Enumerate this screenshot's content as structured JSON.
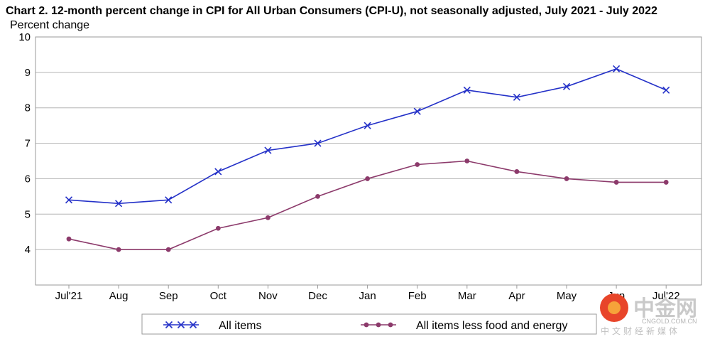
{
  "chart_data": {
    "type": "line",
    "title": "Chart 2. 12-month percent change in CPI for All Urban Consumers (CPI-U), not seasonally adjusted, July 2021 - July 2022",
    "ylabel": "Percent change",
    "xlabel": "",
    "categories": [
      "Jul'21",
      "Aug",
      "Sep",
      "Oct",
      "Nov",
      "Dec",
      "Jan",
      "Feb",
      "Mar",
      "Apr",
      "May",
      "Jun",
      "Jul'22"
    ],
    "ylim": [
      3,
      10
    ],
    "yticks": [
      4,
      5,
      6,
      7,
      8,
      9,
      10
    ],
    "grid": true,
    "legend_position": "bottom",
    "series": [
      {
        "name": "All items",
        "marker": "x",
        "color": "#2431c8",
        "values": [
          5.4,
          5.3,
          5.4,
          6.2,
          6.8,
          7.0,
          7.5,
          7.9,
          8.5,
          8.3,
          8.6,
          9.1,
          8.5
        ]
      },
      {
        "name": "All items less food and energy",
        "marker": "circle",
        "color": "#8c3a6b",
        "values": [
          4.3,
          4.0,
          4.0,
          4.6,
          4.9,
          5.5,
          6.0,
          6.4,
          6.5,
          6.2,
          6.0,
          5.9,
          5.9
        ]
      }
    ]
  },
  "watermark": {
    "logo_text": "中金网",
    "domain": "CNGOLD.COM.CN",
    "tagline": "中文财经新媒体",
    "color": "#e8452a"
  }
}
